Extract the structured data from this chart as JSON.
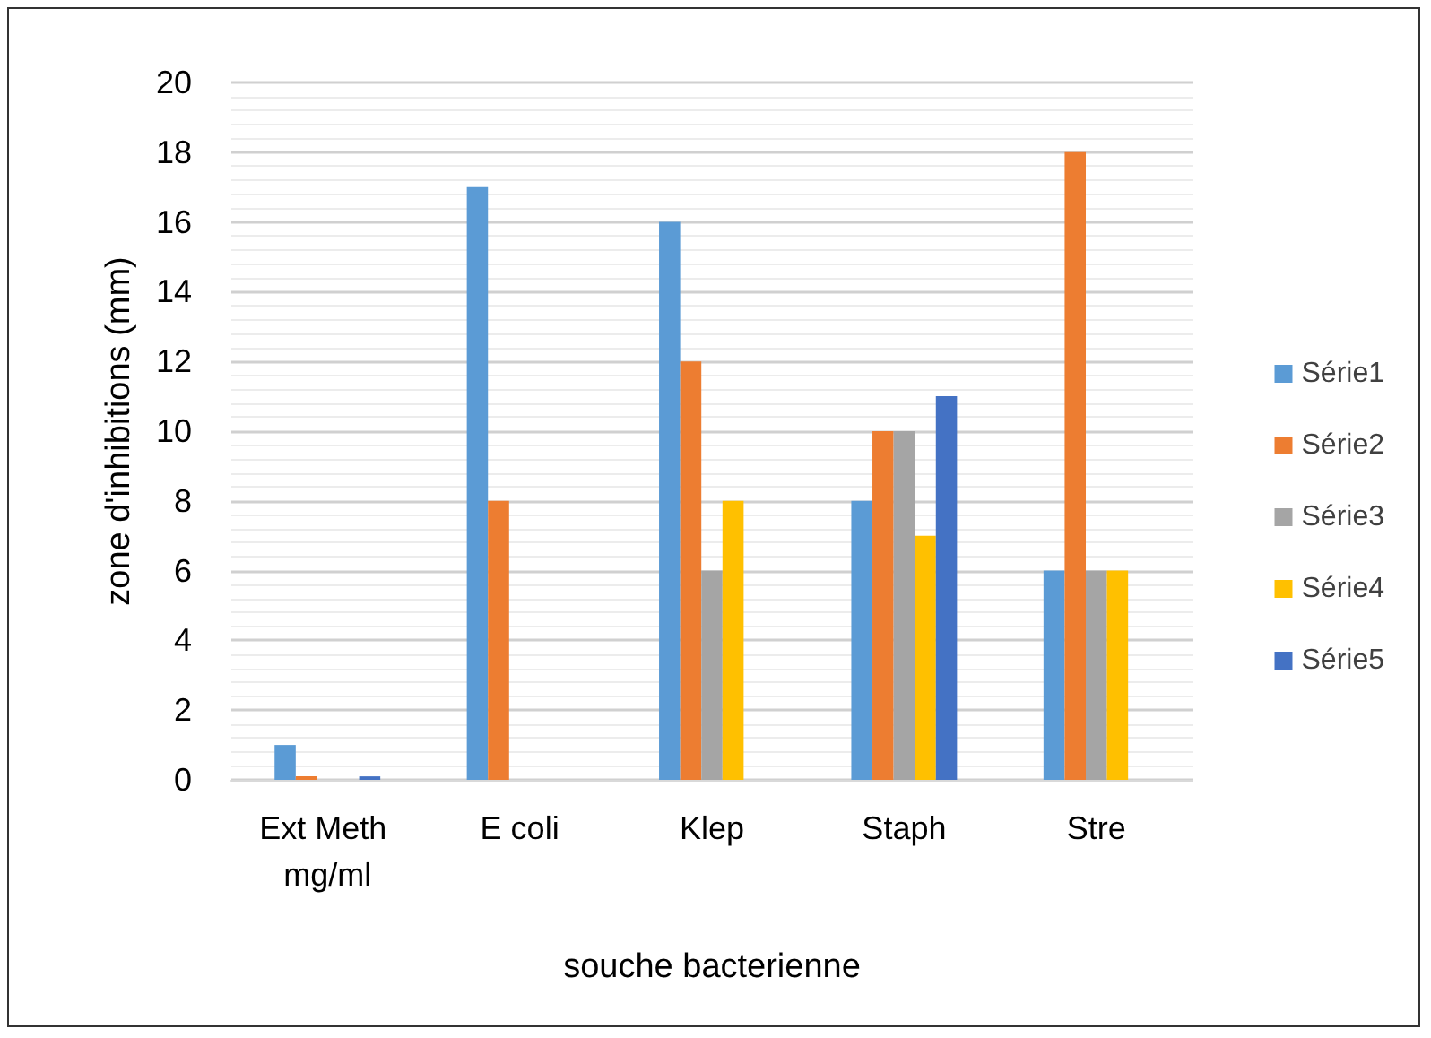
{
  "chart_data": {
    "type": "bar",
    "xlabel": "souche bacterienne",
    "ylabel": "zone d'inhibitions (mm)",
    "categories": [
      "Ext Meth mg/ml",
      "E coli",
      "Klep",
      "Staph",
      "Stre"
    ],
    "series": [
      {
        "name": "Série1",
        "color": "#5b9bd5",
        "values": [
          1,
          17,
          16,
          8,
          6
        ]
      },
      {
        "name": "Série2",
        "color": "#ed7d31",
        "values": [
          0.1,
          8,
          12,
          10,
          18
        ]
      },
      {
        "name": "Série3",
        "color": "#a5a5a5",
        "values": [
          null,
          null,
          6,
          10,
          6
        ]
      },
      {
        "name": "Série4",
        "color": "#ffc000",
        "values": [
          null,
          null,
          8,
          7,
          6
        ]
      },
      {
        "name": "Série5",
        "color": "#4472c4",
        "values": [
          0.1,
          null,
          null,
          11,
          null
        ]
      }
    ],
    "ylim": [
      0,
      20
    ],
    "yticks": [
      0,
      2,
      4,
      6,
      8,
      10,
      12,
      14,
      16,
      18,
      20
    ],
    "grid": "y",
    "legend": "right"
  }
}
